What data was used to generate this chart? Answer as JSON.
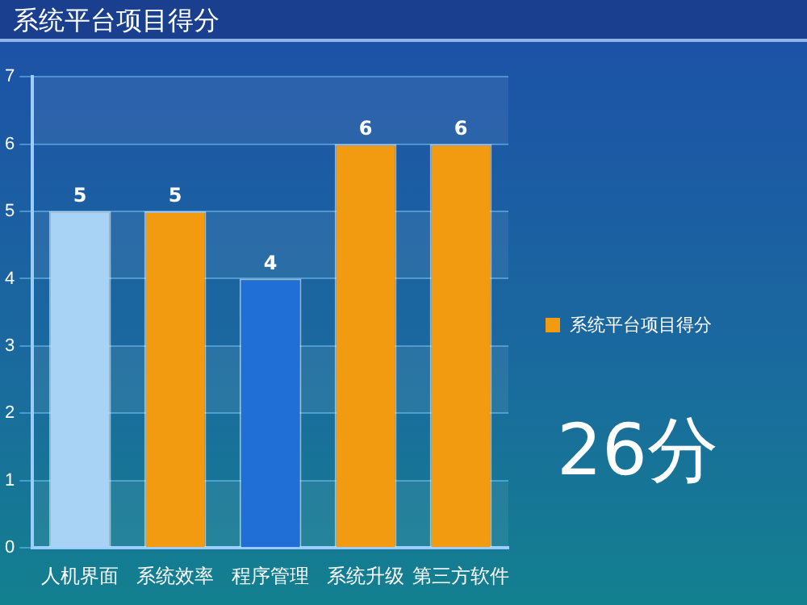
{
  "chart_data": {
    "type": "bar",
    "title": "系统平台项目得分",
    "categories": [
      "人机界面",
      "系统效率",
      "程序管理",
      "系统升级",
      "第三方软件"
    ],
    "series": [
      {
        "name": "系统平台项目得分",
        "color": "#f29a10",
        "colors": [
          "#a9d3f5",
          "#f29a10",
          "#1f6fd6",
          "#f29a10",
          "#f29a10"
        ],
        "values": [
          5,
          5,
          4,
          6,
          6
        ]
      }
    ],
    "ylim": [
      0,
      7
    ],
    "yticks": [
      0,
      1,
      2,
      3,
      4,
      5,
      6,
      7
    ],
    "grid": "y",
    "legend": "right",
    "data_labels": true,
    "annotations": [
      "26分"
    ]
  }
}
